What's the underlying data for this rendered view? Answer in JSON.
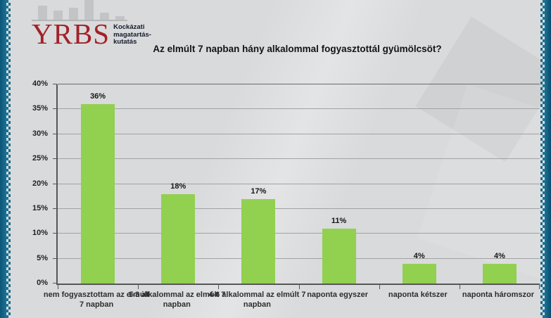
{
  "logo": {
    "acronym": "YRBS",
    "acronym_color": "#a32129",
    "subtitle_lines": [
      "Kockázati",
      "magatartás-",
      "kutatás"
    ],
    "chart_icon_bars": [
      20,
      13,
      17,
      28,
      10,
      5
    ]
  },
  "title": "Az elmúlt 7 napban hány alkalommal fogyasztottál gyümölcsöt?",
  "chart_data": {
    "type": "bar",
    "title": "Az elmúlt 7 napban hány alkalommal fogyasztottál gyümölcsöt?",
    "categories": [
      "nem fogyasztottam az elmúlt 7 napban",
      "1-3 alkalommal az elmúlt 7 napban",
      "4-6 alkalommal az elmúlt 7 napban",
      "naponta egyszer",
      "naponta kétszer",
      "naponta háromszor"
    ],
    "values": [
      36,
      18,
      17,
      11,
      4,
      4
    ],
    "data_labels": [
      "36%",
      "18%",
      "17%",
      "11%",
      "4%",
      "4%"
    ],
    "yticks": [
      "0%",
      "5%",
      "10%",
      "15%",
      "20%",
      "25%",
      "30%",
      "35%",
      "40%"
    ],
    "ylim": [
      0,
      40
    ],
    "ytick_step": 5,
    "grid": true,
    "legend": false,
    "bar_color": "#92d050",
    "xlabel": "",
    "ylabel": ""
  },
  "colors": {
    "page_background": "#d9dadb",
    "edge_teal": "#15688a",
    "bar_green": "#92d050",
    "gridline": "#a2a2a4",
    "axis": "#565658",
    "logo_red": "#a32129",
    "logo_gray_bars": "#c3c4c6"
  }
}
